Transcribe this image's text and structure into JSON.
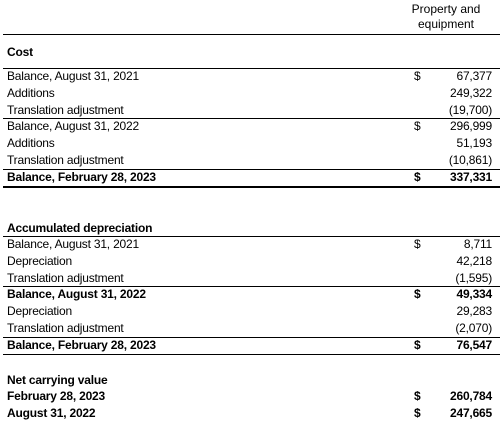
{
  "header": {
    "column": "Property and equipment"
  },
  "sections": [
    {
      "title": "Cost",
      "rows": [
        {
          "label": "Balance, August 31, 2021",
          "currency": "$",
          "value": "67,377"
        },
        {
          "label": "Additions",
          "value": "249,322"
        },
        {
          "label": "Translation adjustment",
          "value": "(19,700)"
        },
        {
          "label": "Balance, August 31, 2022",
          "currency": "$",
          "value": "296,999"
        },
        {
          "label": "Additions",
          "value": "51,193"
        },
        {
          "label": "Translation adjustment",
          "value": "(10,861)"
        },
        {
          "label": "Balance, February 28, 2023",
          "currency": "$",
          "value": "337,331"
        }
      ]
    },
    {
      "title": "Accumulated depreciation",
      "rows": [
        {
          "label": "Balance, August 31, 2021",
          "currency": "$",
          "value": "8,711"
        },
        {
          "label": "Depreciation",
          "value": "42,218"
        },
        {
          "label": "Translation adjustment",
          "value": "(1,595)"
        },
        {
          "label": "Balance, August 31, 2022",
          "currency": "$",
          "value": "49,334"
        },
        {
          "label": "Depreciation",
          "value": "29,283"
        },
        {
          "label": "Translation adjustment",
          "value": "(2,070)"
        },
        {
          "label": "Balance, February 28, 2023",
          "currency": "$",
          "value": "76,547"
        }
      ]
    },
    {
      "title": "Net carrying value",
      "rows": [
        {
          "label": "February 28, 2023",
          "currency": "$",
          "value": "260,784"
        },
        {
          "label": "August 31, 2022",
          "currency": "$",
          "value": "247,665"
        }
      ]
    }
  ]
}
